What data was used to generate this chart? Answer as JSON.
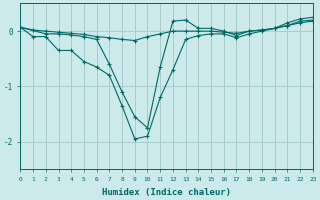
{
  "xlabel": "Humidex (Indice chaleur)",
  "bg_color": "#cceaea",
  "grid_color": "#aacccc",
  "line_color": "#006666",
  "xlim": [
    0,
    23
  ],
  "ylim": [
    -2.5,
    0.5
  ],
  "yticks": [
    0,
    -1,
    -2
  ],
  "line1_x": [
    0,
    1,
    2,
    3,
    4,
    5,
    6,
    7,
    8,
    9,
    10,
    11,
    12,
    13,
    14,
    15,
    16,
    17,
    18,
    19,
    20,
    21,
    22,
    23
  ],
  "line1_y": [
    0.07,
    0.02,
    0.0,
    -0.02,
    -0.04,
    -0.06,
    -0.1,
    -0.12,
    -0.15,
    -0.17,
    -0.1,
    -0.05,
    0.0,
    0.0,
    0.0,
    0.0,
    -0.02,
    -0.04,
    0.0,
    0.02,
    0.05,
    0.1,
    0.15,
    0.18
  ],
  "line2_x": [
    0,
    1,
    2,
    3,
    4,
    5,
    6,
    7,
    8,
    9,
    10,
    11,
    12,
    13,
    14,
    15,
    16,
    17,
    18,
    19,
    20,
    21,
    22,
    23
  ],
  "line2_y": [
    0.07,
    -0.1,
    -0.1,
    -0.35,
    -0.35,
    -0.55,
    -0.65,
    -0.8,
    -1.35,
    -1.95,
    -1.9,
    -1.2,
    -0.7,
    -0.15,
    -0.08,
    -0.05,
    -0.05,
    -0.12,
    -0.05,
    0.0,
    0.05,
    0.1,
    0.18,
    0.2
  ],
  "line3_x": [
    0,
    2,
    3,
    4,
    5,
    6,
    7,
    8,
    9,
    10,
    11,
    12,
    13,
    14,
    15,
    16,
    17,
    18,
    19,
    20,
    21,
    22,
    23
  ],
  "line3_y": [
    0.07,
    -0.05,
    -0.05,
    -0.07,
    -0.1,
    -0.15,
    -0.6,
    -1.1,
    -1.55,
    -1.75,
    -0.65,
    0.18,
    0.2,
    0.05,
    0.05,
    0.0,
    -0.08,
    0.0,
    0.02,
    0.05,
    0.15,
    0.22,
    0.25
  ]
}
